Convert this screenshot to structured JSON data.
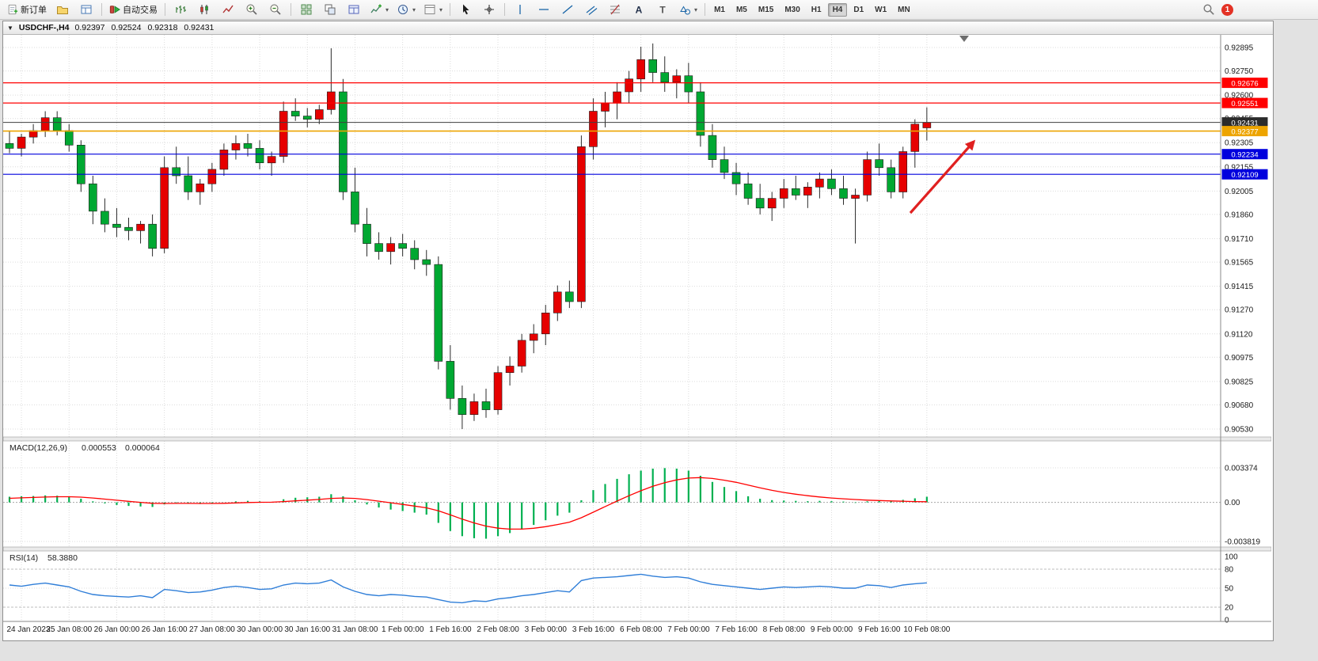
{
  "toolbar": {
    "new_order_label": "新订单",
    "autotrading_label": "自动交易",
    "timeframes": [
      "M1",
      "M5",
      "M15",
      "M30",
      "H1",
      "H4",
      "D1",
      "W1",
      "MN"
    ],
    "active_timeframe": "H4",
    "notification_count": "1"
  },
  "window": {
    "title": "USDCHF-,H4",
    "open": "0.92397",
    "high": "0.92524",
    "low": "0.92318",
    "close": "0.92431"
  },
  "chart_data": {
    "type": "candlestick",
    "symbol": "USDCHF-",
    "timeframe": "H4",
    "colors": {
      "up": "#e60000",
      "down": "#00a832",
      "wick": "#2b2b2b"
    },
    "price_axis_labels": [
      "0.92895",
      "0.92750",
      "0.92600",
      "0.92455",
      "0.92305",
      "0.92155",
      "0.92005",
      "0.91860",
      "0.91710",
      "0.91565",
      "0.91415",
      "0.91270",
      "0.91120",
      "0.90975",
      "0.90825",
      "0.90680",
      "0.90530"
    ],
    "price_axis_range": {
      "top": 0.92895,
      "bottom": 0.9053
    },
    "time_labels": [
      "24 Jan 2023",
      "25 Jan 08:00",
      "26 Jan 00:00",
      "26 Jan 16:00",
      "27 Jan 08:00",
      "30 Jan 00:00",
      "30 Jan 16:00",
      "31 Jan 08:00",
      "1 Feb 00:00",
      "1 Feb 16:00",
      "2 Feb 08:00",
      "3 Feb 00:00",
      "3 Feb 16:00",
      "6 Feb 08:00",
      "7 Feb 00:00",
      "7 Feb 16:00",
      "8 Feb 08:00",
      "9 Feb 00:00",
      "9 Feb 16:00",
      "10 Feb 08:00"
    ],
    "candles": [
      [
        0.923,
        0.9238,
        0.9224,
        0.9227
      ],
      [
        0.9227,
        0.9236,
        0.9222,
        0.9234
      ],
      [
        0.9234,
        0.9242,
        0.923,
        0.9238
      ],
      [
        0.9238,
        0.925,
        0.9234,
        0.9246
      ],
      [
        0.9246,
        0.925,
        0.9235,
        0.9238
      ],
      [
        0.9238,
        0.9242,
        0.9225,
        0.9229
      ],
      [
        0.9229,
        0.9232,
        0.92,
        0.9205
      ],
      [
        0.9205,
        0.921,
        0.918,
        0.9188
      ],
      [
        0.9188,
        0.9196,
        0.9175,
        0.918
      ],
      [
        0.918,
        0.919,
        0.9172,
        0.9178
      ],
      [
        0.9178,
        0.9184,
        0.917,
        0.9176
      ],
      [
        0.9176,
        0.9182,
        0.9168,
        0.918
      ],
      [
        0.918,
        0.9186,
        0.916,
        0.9165
      ],
      [
        0.9165,
        0.9222,
        0.9162,
        0.9215
      ],
      [
        0.9215,
        0.9228,
        0.9205,
        0.921
      ],
      [
        0.921,
        0.9222,
        0.9195,
        0.92
      ],
      [
        0.92,
        0.9208,
        0.9192,
        0.9205
      ],
      [
        0.9205,
        0.9218,
        0.92,
        0.9214
      ],
      [
        0.9214,
        0.923,
        0.921,
        0.9226
      ],
      [
        0.9226,
        0.9235,
        0.922,
        0.923
      ],
      [
        0.923,
        0.9236,
        0.9222,
        0.9227
      ],
      [
        0.9227,
        0.9232,
        0.9214,
        0.9218
      ],
      [
        0.9218,
        0.9225,
        0.921,
        0.9222
      ],
      [
        0.9222,
        0.9256,
        0.9218,
        0.925
      ],
      [
        0.925,
        0.9258,
        0.9244,
        0.9247
      ],
      [
        0.9247,
        0.9252,
        0.924,
        0.9245
      ],
      [
        0.9245,
        0.9254,
        0.9242,
        0.9251
      ],
      [
        0.9251,
        0.9289,
        0.9248,
        0.9262
      ],
      [
        0.9262,
        0.927,
        0.9195,
        0.92
      ],
      [
        0.92,
        0.9215,
        0.9175,
        0.918
      ],
      [
        0.918,
        0.919,
        0.916,
        0.9168
      ],
      [
        0.9168,
        0.9175,
        0.9158,
        0.9163
      ],
      [
        0.9163,
        0.9172,
        0.9155,
        0.9168
      ],
      [
        0.9168,
        0.9174,
        0.916,
        0.9165
      ],
      [
        0.9165,
        0.917,
        0.9152,
        0.9158
      ],
      [
        0.9158,
        0.9164,
        0.9148,
        0.9155
      ],
      [
        0.9155,
        0.916,
        0.909,
        0.9095
      ],
      [
        0.9095,
        0.9105,
        0.9065,
        0.9072
      ],
      [
        0.9072,
        0.908,
        0.9053,
        0.9062
      ],
      [
        0.9062,
        0.9075,
        0.9058,
        0.907
      ],
      [
        0.907,
        0.9078,
        0.906,
        0.9065
      ],
      [
        0.9065,
        0.9092,
        0.9062,
        0.9088
      ],
      [
        0.9088,
        0.9098,
        0.908,
        0.9092
      ],
      [
        0.9092,
        0.9112,
        0.9088,
        0.9108
      ],
      [
        0.9108,
        0.9118,
        0.91,
        0.9112
      ],
      [
        0.9112,
        0.913,
        0.9105,
        0.9125
      ],
      [
        0.9125,
        0.9142,
        0.912,
        0.9138
      ],
      [
        0.9138,
        0.9145,
        0.9128,
        0.9132
      ],
      [
        0.9132,
        0.9235,
        0.9128,
        0.9228
      ],
      [
        0.9228,
        0.9258,
        0.922,
        0.925
      ],
      [
        0.925,
        0.9262,
        0.924,
        0.9255
      ],
      [
        0.9255,
        0.9268,
        0.9245,
        0.9262
      ],
      [
        0.9262,
        0.9275,
        0.9255,
        0.927
      ],
      [
        0.927,
        0.929,
        0.9262,
        0.9282
      ],
      [
        0.9282,
        0.9292,
        0.9268,
        0.9274
      ],
      [
        0.9274,
        0.9284,
        0.9262,
        0.9268
      ],
      [
        0.9268,
        0.9276,
        0.9258,
        0.9272
      ],
      [
        0.9272,
        0.928,
        0.9255,
        0.9262
      ],
      [
        0.9262,
        0.9268,
        0.9228,
        0.9235
      ],
      [
        0.9235,
        0.9242,
        0.9215,
        0.922
      ],
      [
        0.922,
        0.9228,
        0.9208,
        0.9212
      ],
      [
        0.9212,
        0.9218,
        0.9198,
        0.9205
      ],
      [
        0.9205,
        0.9212,
        0.9192,
        0.9196
      ],
      [
        0.9196,
        0.9205,
        0.9186,
        0.919
      ],
      [
        0.919,
        0.92,
        0.9182,
        0.9196
      ],
      [
        0.9196,
        0.9208,
        0.919,
        0.9202
      ],
      [
        0.9202,
        0.921,
        0.9195,
        0.9198
      ],
      [
        0.9198,
        0.9206,
        0.919,
        0.9203
      ],
      [
        0.9203,
        0.9212,
        0.9196,
        0.9208
      ],
      [
        0.9208,
        0.9214,
        0.9198,
        0.9202
      ],
      [
        0.9202,
        0.921,
        0.9192,
        0.9196
      ],
      [
        0.9196,
        0.9202,
        0.9168,
        0.9198
      ],
      [
        0.9198,
        0.9225,
        0.9194,
        0.922
      ],
      [
        0.922,
        0.923,
        0.921,
        0.9215
      ],
      [
        0.9215,
        0.922,
        0.9196,
        0.92
      ],
      [
        0.92,
        0.9228,
        0.9196,
        0.9225
      ],
      [
        0.9225,
        0.9245,
        0.9215,
        0.9242
      ],
      [
        0.92397,
        0.92524,
        0.92318,
        0.92431
      ]
    ],
    "levels": [
      {
        "price": 0.92676,
        "label": "0.92676",
        "color": "#ff0000",
        "style": "resistance"
      },
      {
        "price": 0.92551,
        "label": "0.92551",
        "color": "#ff0000",
        "style": "resistance"
      },
      {
        "price": 0.92431,
        "label": "0.92431",
        "color": "#3f3f3f",
        "style": "current-price"
      },
      {
        "price": 0.92377,
        "label": "0.92377",
        "color": "#eda400",
        "style": "pivot"
      },
      {
        "price": 0.92234,
        "label": "0.92234",
        "color": "#0000dd",
        "style": "support"
      },
      {
        "price": 0.92109,
        "label": "0.92109",
        "color": "#0000dd",
        "style": "support"
      }
    ],
    "arrow": {
      "from": [
        1150,
        268
      ],
      "to": [
        1230,
        178
      ],
      "color": "#e02020"
    },
    "macd": {
      "label": "MACD(12,26,9)",
      "value_main": "0.000553",
      "value_signal": "0.000064",
      "axis_labels": [
        "0.003374",
        "0.00",
        "-0.003819"
      ],
      "axis_max": 0.003374,
      "axis_min": -0.003819,
      "hist_color": "#00b050",
      "signal_color": "#ff0000",
      "histogram": [
        0.00055,
        0.0006,
        0.00062,
        0.00068,
        0.00065,
        0.00055,
        0.00035,
        0.0001,
        -0.0001,
        -0.00025,
        -0.00035,
        -0.0004,
        -0.00045,
        -0.0002,
        -5e-05,
        -0.0001,
        -0.00015,
        -0.0001,
        0,
        0.0001,
        0.00015,
        0.0001,
        5e-05,
        0.0003,
        0.00045,
        0.0005,
        0.00055,
        0.0008,
        0.0006,
        0.0002,
        -0.0002,
        -0.0005,
        -0.0007,
        -0.00085,
        -0.001,
        -0.0012,
        -0.002,
        -0.0028,
        -0.0033,
        -0.0035,
        -0.00355,
        -0.0033,
        -0.003,
        -0.0026,
        -0.0022,
        -0.00175,
        -0.0013,
        -0.001,
        0.0002,
        0.0012,
        0.0018,
        0.0023,
        0.00275,
        0.0031,
        0.0033,
        0.00335,
        0.0033,
        0.0031,
        0.0026,
        0.002,
        0.0015,
        0.0011,
        0.0006,
        0.00035,
        0.00022,
        0.00018,
        0.00015,
        0.00012,
        0.00015,
        0.00012,
        8e-05,
        -5e-05,
        0.0001,
        0.00018,
        0.00012,
        0.00025,
        0.0004,
        0.000553
      ],
      "signal": [
        0.0004,
        0.00044,
        0.00048,
        0.00052,
        0.00055,
        0.00055,
        0.00051,
        0.00043,
        0.00032,
        0.00021,
        0.0001,
        0,
        -9e-05,
        -0.00011,
        -0.0001,
        -0.0001,
        -0.00011,
        -0.00011,
        -9e-05,
        -5e-05,
        -1e-05,
        1e-05,
        2e-05,
        8e-05,
        0.00015,
        0.00022,
        0.00029,
        0.00039,
        0.00043,
        0.00039,
        0.00027,
        0.00012,
        -4e-05,
        -0.0002,
        -0.00036,
        -0.00053,
        -0.00082,
        -0.00122,
        -0.00164,
        -0.00201,
        -0.00232,
        -0.00252,
        -0.00261,
        -0.00261,
        -0.00253,
        -0.00237,
        -0.00216,
        -0.00193,
        -0.0015,
        -0.00096,
        -0.00041,
        0.00013,
        0.00065,
        0.00114,
        0.00157,
        0.00193,
        0.0022,
        0.00238,
        0.00242,
        0.00234,
        0.00217,
        0.00196,
        0.00169,
        0.00142,
        0.00118,
        0.00097,
        0.0008,
        0.00065,
        0.00053,
        0.00043,
        0.00035,
        0.00028,
        0.00022,
        0.00018,
        0.00014,
        0.00011,
        8e-05,
        6.4e-05
      ]
    },
    "rsi": {
      "label": "RSI(14)",
      "value": "58.3880",
      "line_color": "#2f7ed8",
      "axis_labels": [
        "100",
        "80",
        "50",
        "20",
        "0"
      ],
      "levels": [
        100,
        80,
        50,
        20,
        0
      ],
      "values": [
        55,
        53,
        56,
        58,
        55,
        52,
        45,
        40,
        38,
        37,
        36,
        38,
        35,
        48,
        46,
        43,
        44,
        47,
        51,
        53,
        51,
        48,
        49,
        55,
        58,
        57,
        58,
        63,
        52,
        45,
        40,
        38,
        40,
        39,
        37,
        36,
        32,
        28,
        27,
        30,
        29,
        33,
        35,
        38,
        40,
        43,
        46,
        44,
        62,
        66,
        67,
        68,
        70,
        72,
        69,
        67,
        68,
        66,
        60,
        56,
        54,
        52,
        50,
        48,
        50,
        52,
        51,
        52,
        53,
        52,
        50,
        50,
        55,
        54,
        51,
        55,
        57,
        58.39
      ]
    }
  }
}
